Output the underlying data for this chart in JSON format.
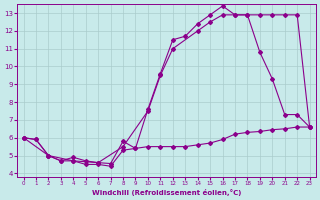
{
  "bg_color": "#c8eaea",
  "line_color": "#8b008b",
  "grid_color": "#aacccc",
  "xlabel": "Windchill (Refroidissement éolien,°C)",
  "xlim": [
    -0.5,
    23.5
  ],
  "ylim": [
    3.8,
    13.5
  ],
  "xticks": [
    0,
    1,
    2,
    3,
    4,
    5,
    6,
    7,
    8,
    9,
    10,
    11,
    12,
    13,
    14,
    15,
    16,
    17,
    18,
    19,
    20,
    21,
    22,
    23
  ],
  "yticks": [
    4,
    5,
    6,
    7,
    8,
    9,
    10,
    11,
    12,
    13
  ],
  "series1_x": [
    0,
    1,
    2,
    3,
    4,
    5,
    6,
    7,
    8,
    9,
    10,
    11,
    12,
    13,
    14,
    15,
    16,
    17,
    18,
    19,
    20,
    21,
    22,
    23
  ],
  "series1_y": [
    6.0,
    5.9,
    5.0,
    4.7,
    4.9,
    4.7,
    4.6,
    4.55,
    5.8,
    5.4,
    5.5,
    5.5,
    5.5,
    5.5,
    5.6,
    5.7,
    5.9,
    6.2,
    6.3,
    6.35,
    6.45,
    6.5,
    6.6,
    6.6
  ],
  "series2_x": [
    0,
    1,
    2,
    3,
    4,
    5,
    6,
    7,
    8,
    9,
    10,
    11,
    12,
    13,
    14,
    15,
    16,
    17,
    18,
    19,
    20,
    21,
    22,
    23
  ],
  "series2_y": [
    6.0,
    5.9,
    5.0,
    4.7,
    4.7,
    4.5,
    4.5,
    4.4,
    5.3,
    5.4,
    7.6,
    9.6,
    11.5,
    11.7,
    12.4,
    12.9,
    13.4,
    12.9,
    12.9,
    10.8,
    9.3,
    7.3,
    7.3,
    6.6
  ],
  "series3_x": [
    0,
    2,
    4,
    6,
    8,
    10,
    11,
    12,
    14,
    15,
    16,
    17,
    18,
    19,
    20,
    21,
    22,
    23
  ],
  "series3_y": [
    6.0,
    5.0,
    4.7,
    4.6,
    5.5,
    7.5,
    9.5,
    11.0,
    12.0,
    12.5,
    12.9,
    12.9,
    12.9,
    12.9,
    12.9,
    12.9,
    12.9,
    6.6
  ]
}
